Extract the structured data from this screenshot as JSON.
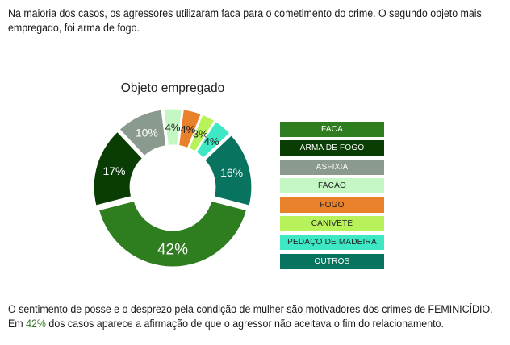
{
  "intro": {
    "line1": "Na maioria  dos casos, os agressores utilizaram faca para o cometimento do crime. O segundo objeto mais",
    "line2": "empregado, foi arma de fogo."
  },
  "outro": {
    "line1": "O sentimento de posse e o desprezo pela condição de mulher são motivadores dos crimes de FEMINICÍDIO.",
    "line2_prefix": "Em ",
    "line2_highlight": "42%",
    "line2_suffix": " dos casos aparece a afirmação de que o agressor não aceitava o fim do relacionamento."
  },
  "chart_data": {
    "type": "pie",
    "title": "Objeto empregado",
    "unit": "%",
    "legend_position": "right",
    "slices": [
      {
        "label": "FACA",
        "value": 42,
        "color": "#2e7d1f",
        "text_color": "#ffffff"
      },
      {
        "label": "ARMA DE FOGO",
        "value": 17,
        "color": "#0a3d04",
        "text_color": "#ffffff"
      },
      {
        "label": "ASFIXIA",
        "value": 10,
        "color": "#8b9a8f",
        "text_color": "#ffffff"
      },
      {
        "label": "FACÃO",
        "value": 4,
        "color": "#c4f7c4",
        "text_color": "#222222"
      },
      {
        "label": "FOGO",
        "value": 4,
        "color": "#e8812a",
        "text_color": "#222222"
      },
      {
        "label": "CANIVETE",
        "value": 3,
        "color": "#b8f25a",
        "text_color": "#222222"
      },
      {
        "label": "PEDAÇO DE MADEIRA",
        "value": 4,
        "color": "#3fe8c4",
        "text_color": "#222222"
      },
      {
        "label": "OUTROS",
        "value": 16,
        "color": "#08735e",
        "text_color": "#ffffff"
      }
    ]
  }
}
